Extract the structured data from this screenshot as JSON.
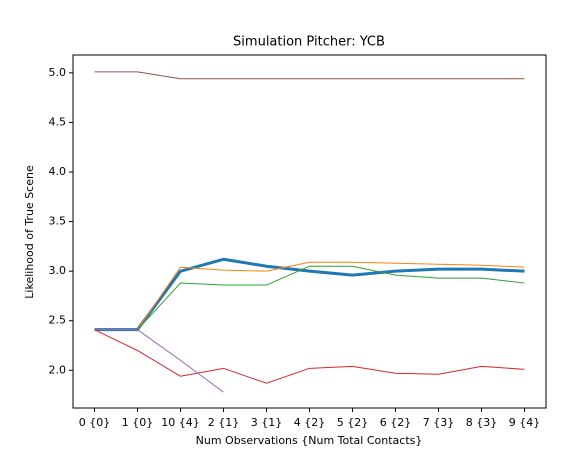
{
  "chart_data": {
    "type": "line",
    "title": "Simulation Pitcher: YCB",
    "x_label": "Num Observations {Num Total Contacts}",
    "y_label": "Likelihood of True Scene",
    "categories": [
      "0 {0}",
      "1 {0}",
      "10 {4}",
      "2 {1}",
      "3 {1}",
      "4 {2}",
      "5 {2}",
      "6 {2}",
      "7 {3}",
      "8 {3}",
      "9 {4}"
    ],
    "series": [
      {
        "color": "#1f77b4",
        "width": 3,
        "values": [
          2.41,
          2.41,
          3.0,
          3.12,
          3.05,
          3.0,
          2.96,
          3.0,
          3.02,
          3.02,
          3.0
        ]
      },
      {
        "color": "#ff7f0e",
        "width": 1,
        "values": [
          2.41,
          2.41,
          3.04,
          3.01,
          3.0,
          3.09,
          3.09,
          3.08,
          3.07,
          3.06,
          3.04
        ]
      },
      {
        "color": "#2ca02c",
        "width": 1,
        "values": [
          2.41,
          2.41,
          2.88,
          2.86,
          2.86,
          3.05,
          3.05,
          2.96,
          2.93,
          2.93,
          2.88
        ]
      },
      {
        "color": "#d62728",
        "width": 1,
        "values": [
          2.41,
          2.2,
          1.94,
          2.02,
          1.87,
          2.02,
          2.04,
          1.97,
          1.96,
          2.04,
          2.01
        ]
      },
      {
        "color": "#9467bd",
        "width": 1,
        "values": [
          2.41,
          2.41,
          2.1,
          1.78,
          null,
          null,
          null,
          null,
          null,
          null,
          null
        ]
      },
      {
        "color": "#8c564b",
        "width": 1,
        "values": [
          5.01,
          5.01,
          4.94,
          4.94,
          4.94,
          4.94,
          4.94,
          4.94,
          4.94,
          4.94,
          4.94
        ]
      }
    ],
    "ylim": [
      1.62,
      5.18
    ],
    "yticks": [
      {
        "value": 2,
        "label": "2.0"
      },
      {
        "value": 2.5,
        "label": "2.5"
      },
      {
        "value": 3,
        "label": "3.0"
      },
      {
        "value": 3.5,
        "label": "3.5"
      },
      {
        "value": 4,
        "label": "4.0"
      },
      {
        "value": 4.5,
        "label": "4.5"
      },
      {
        "value": 5,
        "label": "5.0"
      }
    ]
  }
}
